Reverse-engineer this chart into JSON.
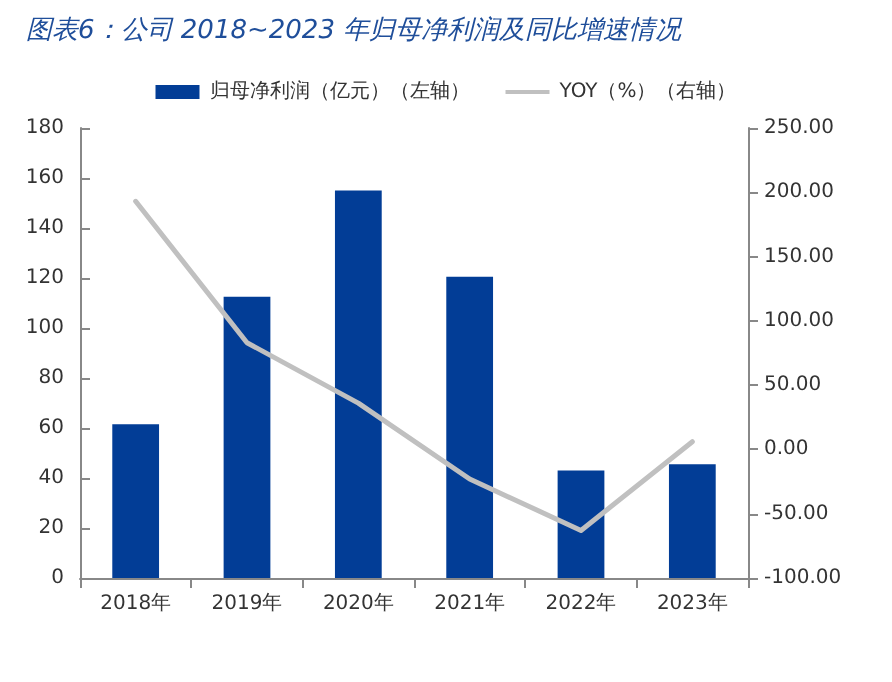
{
  "chart_data": {
    "type": "bar",
    "title": "图表6：公司 2018~2023 年归母净利润及同比增速情况",
    "categories": [
      "2018年",
      "2019年",
      "2020年",
      "2021年",
      "2022年",
      "2023年"
    ],
    "series": [
      {
        "name": "归母净利润（亿元）（左轴）",
        "color": "#023d96",
        "values": [
          61.5,
          112.5,
          155,
          120.5,
          43,
          45.5
        ]
      },
      {
        "name": "YOY（%）（右轴）",
        "type": "line",
        "axis": "y2",
        "color": "#c0c0c0",
        "values": [
          193,
          83,
          36,
          -23,
          -63,
          6
        ]
      }
    ],
    "ylim": [
      0,
      180
    ],
    "yticks": [
      0,
      20,
      40,
      60,
      80,
      100,
      120,
      140,
      160,
      180
    ],
    "y2lim": [
      -100,
      250
    ],
    "y2ticks": [
      {
        "value": -100,
        "label": "-100.00"
      },
      {
        "value": -50,
        "label": "-50.00"
      },
      {
        "value": 0,
        "label": "0.00"
      },
      {
        "value": 50,
        "label": "50.00"
      },
      {
        "value": 100,
        "label": "100.00"
      },
      {
        "value": 150,
        "label": "150.00"
      },
      {
        "value": 200,
        "label": "200.00"
      },
      {
        "value": 250,
        "label": "250.00"
      }
    ],
    "grid": false,
    "legend": "top",
    "marker": "none",
    "line_style": "solid"
  }
}
